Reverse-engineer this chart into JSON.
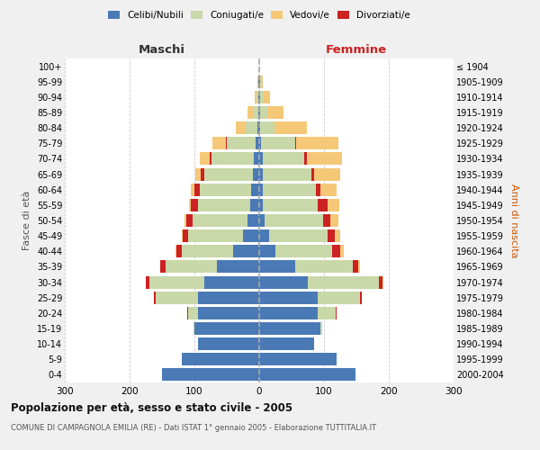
{
  "age_groups": [
    "0-4",
    "5-9",
    "10-14",
    "15-19",
    "20-24",
    "25-29",
    "30-34",
    "35-39",
    "40-44",
    "45-49",
    "50-54",
    "55-59",
    "60-64",
    "65-69",
    "70-74",
    "75-79",
    "80-84",
    "85-89",
    "90-94",
    "95-99",
    "100+"
  ],
  "birth_years": [
    "2000-2004",
    "1995-1999",
    "1990-1994",
    "1985-1989",
    "1980-1984",
    "1975-1979",
    "1970-1974",
    "1965-1969",
    "1960-1964",
    "1955-1959",
    "1950-1954",
    "1945-1949",
    "1940-1944",
    "1935-1939",
    "1930-1934",
    "1925-1929",
    "1920-1924",
    "1915-1919",
    "1910-1914",
    "1905-1909",
    "≤ 1904"
  ],
  "colors": {
    "celibe": "#4a7ab5",
    "coniugato": "#c8d8a8",
    "vedovo": "#f5c878",
    "divorziato": "#cc2222"
  },
  "maschi": {
    "celibe": [
      150,
      120,
      95,
      100,
      95,
      95,
      85,
      65,
      40,
      25,
      18,
      14,
      12,
      10,
      8,
      5,
      3,
      2,
      1,
      1,
      0
    ],
    "coniugato": [
      0,
      0,
      0,
      2,
      15,
      65,
      85,
      80,
      80,
      85,
      85,
      80,
      80,
      75,
      65,
      45,
      18,
      8,
      3,
      1,
      0
    ],
    "vedovo": [
      0,
      0,
      0,
      0,
      0,
      0,
      0,
      0,
      1,
      1,
      2,
      3,
      5,
      8,
      15,
      20,
      15,
      8,
      3,
      1,
      0
    ],
    "divorziato": [
      0,
      0,
      0,
      0,
      1,
      2,
      5,
      8,
      8,
      8,
      10,
      12,
      8,
      5,
      3,
      2,
      0,
      0,
      0,
      0,
      0
    ]
  },
  "femmine": {
    "nubile": [
      148,
      120,
      85,
      95,
      90,
      90,
      75,
      55,
      25,
      15,
      8,
      5,
      5,
      5,
      5,
      3,
      2,
      2,
      2,
      1,
      0
    ],
    "coniugata": [
      0,
      0,
      0,
      2,
      28,
      65,
      110,
      90,
      88,
      90,
      90,
      85,
      82,
      75,
      65,
      52,
      22,
      10,
      5,
      2,
      0
    ],
    "vedova": [
      0,
      0,
      0,
      0,
      0,
      0,
      1,
      2,
      5,
      8,
      12,
      18,
      25,
      40,
      55,
      65,
      50,
      25,
      10,
      2,
      0
    ],
    "divorziata": [
      0,
      0,
      0,
      0,
      1,
      3,
      5,
      8,
      12,
      12,
      12,
      15,
      8,
      5,
      3,
      2,
      0,
      0,
      0,
      0,
      0
    ]
  },
  "xlim": 300,
  "title": "Popolazione per età, sesso e stato civile - 2005",
  "subtitle": "COMUNE DI CAMPAGNOLA EMILIA (RE) - Dati ISTAT 1° gennaio 2005 - Elaborazione TUTTITALIA.IT",
  "ylabel_left": "Fasce di età",
  "ylabel_right": "Anni di nascita",
  "legend_labels": [
    "Celibi/Nubili",
    "Coniugati/e",
    "Vedovi/e",
    "Divorziati/e"
  ],
  "maschi_label": "Maschi",
  "femmine_label": "Femmine",
  "bg_color": "#f0f0f0",
  "bar_bg_color": "#ffffff"
}
